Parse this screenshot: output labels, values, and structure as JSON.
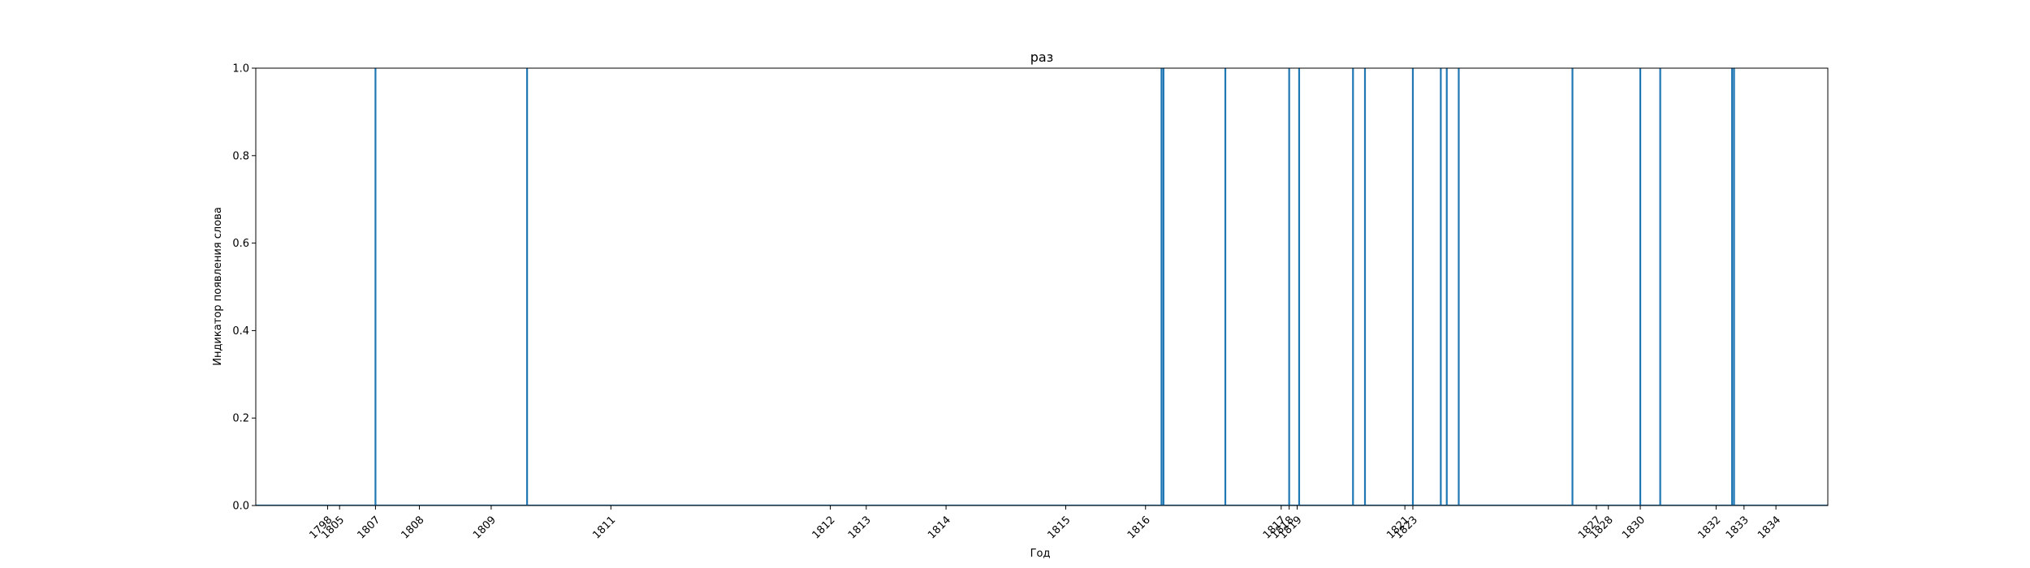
{
  "chart_data": {
    "type": "line",
    "title": "раз",
    "xlabel": "Год",
    "ylabel": "Индикатор появления слова",
    "xlim": [
      1796.6,
      1836.0
    ],
    "ylim": [
      0.0,
      1.0
    ],
    "grid": false,
    "legend": "none",
    "color": "#1f77b4",
    "y_ticks": [
      "0.0",
      "0.2",
      "0.4",
      "0.6",
      "0.8",
      "1.0"
    ],
    "x_tick_labels": [
      {
        "label": "1798",
        "x": 1798.4
      },
      {
        "label": "1805",
        "x": 1798.7
      },
      {
        "label": "1807",
        "x": 1799.6
      },
      {
        "label": "1808",
        "x": 1800.7
      },
      {
        "label": "1809",
        "x": 1802.5
      },
      {
        "label": "1811",
        "x": 1805.5
      },
      {
        "label": "1812",
        "x": 1811.0
      },
      {
        "label": "1813",
        "x": 1811.9
      },
      {
        "label": "1814",
        "x": 1813.9
      },
      {
        "label": "1815",
        "x": 1816.9
      },
      {
        "label": "1816",
        "x": 1818.9
      },
      {
        "label": "1817",
        "x": 1822.3
      },
      {
        "label": "1818",
        "x": 1822.5
      },
      {
        "label": "1819",
        "x": 1822.7
      },
      {
        "label": "1821",
        "x": 1825.4
      },
      {
        "label": "1823",
        "x": 1825.6
      },
      {
        "label": "1827",
        "x": 1830.2
      },
      {
        "label": "1828",
        "x": 1830.5
      },
      {
        "label": "1830",
        "x": 1831.3
      },
      {
        "label": "1832",
        "x": 1833.2
      },
      {
        "label": "1833",
        "x": 1833.9
      },
      {
        "label": "1834",
        "x": 1834.7
      }
    ],
    "x": [
      1796.6,
      1799.6,
      1799.6,
      1799.6,
      1803.4,
      1803.4,
      1803.4,
      1819.3,
      1819.3,
      1819.3,
      1819.35,
      1819.35,
      1819.35,
      1820.9,
      1820.9,
      1820.9,
      1822.5,
      1822.5,
      1822.5,
      1822.75,
      1822.75,
      1822.75,
      1824.1,
      1824.1,
      1824.1,
      1824.4,
      1824.4,
      1824.4,
      1825.6,
      1825.6,
      1825.6,
      1826.3,
      1826.3,
      1826.3,
      1826.45,
      1826.45,
      1826.45,
      1826.75,
      1826.75,
      1826.75,
      1829.6,
      1829.6,
      1829.6,
      1831.3,
      1831.3,
      1831.3,
      1831.8,
      1831.8,
      1831.8,
      1833.6,
      1833.6,
      1833.6,
      1833.65,
      1833.65,
      1833.65,
      1836.8,
      1836.8,
      1836.8,
      1836.0
    ],
    "y": [
      0,
      0,
      1,
      0,
      0,
      1,
      0,
      0,
      1,
      0,
      0,
      1,
      0,
      0,
      1,
      0,
      0,
      1,
      0,
      0,
      1,
      0,
      0,
      1,
      0,
      0,
      1,
      0,
      0,
      1,
      0,
      0,
      1,
      0,
      0,
      1,
      0,
      0,
      1,
      0,
      0,
      1,
      0,
      0,
      1,
      0,
      0,
      1,
      0,
      0,
      1,
      0,
      0,
      1,
      0,
      0,
      1,
      0,
      0
    ]
  }
}
